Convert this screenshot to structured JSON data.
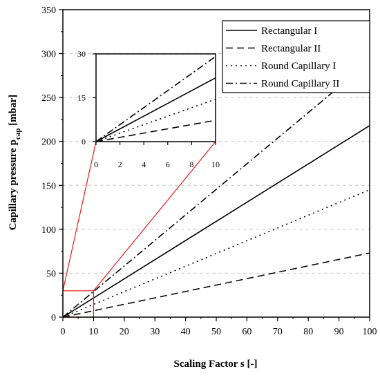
{
  "chart_data": {
    "type": "line",
    "xlabel": "Scaling Factor s [-]",
    "ylabel": {
      "main": "Capillary pressure p",
      "sub": "cap",
      "unit": " [mbar]"
    },
    "xlim": [
      0,
      100
    ],
    "ylim": [
      0,
      350
    ],
    "xticks": [
      0,
      10,
      20,
      30,
      40,
      50,
      60,
      70,
      80,
      90,
      100
    ],
    "yticks": [
      0,
      50,
      100,
      150,
      200,
      250,
      300,
      350
    ],
    "grid": {
      "horizontal": true,
      "style": "dashed",
      "color": "#c8c8c8"
    },
    "legend_position": "top-right",
    "series": [
      {
        "name": "Rectangular I",
        "dash": "solid",
        "x": [
          0,
          100
        ],
        "y": [
          0,
          218
        ]
      },
      {
        "name": "Rectangular II",
        "dash": "dashed",
        "x": [
          0,
          100
        ],
        "y": [
          0,
          73
        ]
      },
      {
        "name": "Round Capillary I",
        "dash": "dotted",
        "x": [
          0,
          100
        ],
        "y": [
          0,
          145
        ]
      },
      {
        "name": "Round Capillary II",
        "dash": "dashdot",
        "x": [
          0,
          100
        ],
        "y": [
          0,
          291
        ]
      }
    ],
    "inset": {
      "xlim": [
        0,
        10
      ],
      "ylim": [
        0,
        30
      ],
      "xticks": [
        0,
        2,
        4,
        6,
        8,
        10
      ],
      "yticks": [
        0,
        15,
        30
      ],
      "zoom_box_color": "#e41a1c"
    }
  }
}
